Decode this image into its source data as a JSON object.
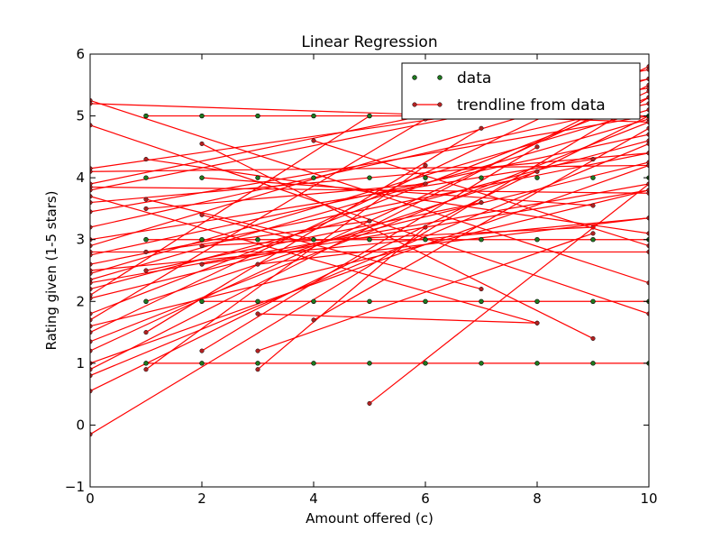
{
  "chart_data": {
    "type": "scatter",
    "title": "Linear Regression",
    "xlabel": "Amount offered (c)",
    "ylabel": "Rating given (1-5 stars)",
    "xlim": [
      0,
      10
    ],
    "ylim": [
      -1,
      6
    ],
    "xticks": [
      0,
      2,
      4,
      6,
      8,
      10
    ],
    "yticks": [
      -1,
      0,
      1,
      2,
      3,
      4,
      5,
      6
    ],
    "grid": false,
    "legend_position": "top-right",
    "series": [
      {
        "name": "data",
        "kind": "points",
        "color": "#1f7a1f",
        "points": [
          [
            1,
            5
          ],
          [
            2,
            5
          ],
          [
            3,
            5
          ],
          [
            4,
            5
          ],
          [
            5,
            5
          ],
          [
            6,
            5
          ],
          [
            7,
            5
          ],
          [
            8,
            5
          ],
          [
            9,
            5
          ],
          [
            10,
            5
          ],
          [
            1,
            4
          ],
          [
            2,
            4
          ],
          [
            3,
            4
          ],
          [
            4,
            4
          ],
          [
            5,
            4
          ],
          [
            6,
            4
          ],
          [
            7,
            4
          ],
          [
            8,
            4
          ],
          [
            9,
            4
          ],
          [
            10,
            4
          ],
          [
            1,
            3
          ],
          [
            2,
            3
          ],
          [
            3,
            3
          ],
          [
            4,
            3
          ],
          [
            5,
            3
          ],
          [
            6,
            3
          ],
          [
            7,
            3
          ],
          [
            8,
            3
          ],
          [
            9,
            3
          ],
          [
            10,
            3
          ],
          [
            1,
            2
          ],
          [
            2,
            2
          ],
          [
            3,
            2
          ],
          [
            4,
            2
          ],
          [
            5,
            2
          ],
          [
            6,
            2
          ],
          [
            7,
            2
          ],
          [
            8,
            2
          ],
          [
            9,
            2
          ],
          [
            10,
            2
          ],
          [
            1,
            1
          ],
          [
            2,
            1
          ],
          [
            3,
            1
          ],
          [
            4,
            1
          ],
          [
            5,
            1
          ],
          [
            6,
            1
          ],
          [
            7,
            1
          ],
          [
            8,
            1
          ],
          [
            9,
            1
          ],
          [
            10,
            1
          ]
        ]
      },
      {
        "name": "trendline from data",
        "kind": "lines",
        "color": "#ff0000",
        "marker_color": "#b22222",
        "lines": [
          [
            1,
            5.0,
            10,
            5.0
          ],
          [
            1,
            1.0,
            10,
            1.0
          ],
          [
            0,
            2.8,
            10,
            2.8
          ],
          [
            1,
            3.0,
            10,
            3.0
          ],
          [
            2,
            2.0,
            10,
            2.0
          ],
          [
            0,
            5.25,
            10,
            2.3
          ],
          [
            0,
            4.85,
            10,
            1.8
          ],
          [
            0,
            5.2,
            10,
            4.9
          ],
          [
            0,
            4.1,
            10,
            4.2
          ],
          [
            0,
            3.85,
            10,
            3.75
          ],
          [
            0,
            2.9,
            10,
            5.6
          ],
          [
            0,
            2.45,
            10,
            5.1
          ],
          [
            0,
            2.35,
            10,
            4.95
          ],
          [
            0,
            2.2,
            10,
            4.6
          ],
          [
            0,
            1.8,
            10,
            5.3
          ],
          [
            0,
            1.5,
            10,
            5.8
          ],
          [
            0,
            1.2,
            10,
            5.4
          ],
          [
            0,
            0.9,
            10,
            5.5
          ],
          [
            0,
            0.55,
            10,
            5.0
          ],
          [
            0,
            -0.15,
            10,
            5.3
          ],
          [
            0,
            2.6,
            10,
            4.4
          ],
          [
            0,
            3.45,
            10,
            5.0
          ],
          [
            0,
            3.8,
            10,
            5.6
          ],
          [
            0,
            2.05,
            10,
            4.25
          ],
          [
            0,
            1.0,
            10,
            4.2
          ],
          [
            0,
            3.2,
            10,
            5.2
          ],
          [
            0,
            2.3,
            10,
            3.9
          ],
          [
            0,
            3.6,
            10,
            4.4
          ],
          [
            0,
            1.6,
            10,
            3.8
          ],
          [
            0,
            2.75,
            10,
            4.7
          ],
          [
            0,
            3.9,
            10,
            5.75
          ],
          [
            0,
            1.35,
            10,
            4.9
          ],
          [
            0,
            4.15,
            10,
            5.45
          ],
          [
            0,
            2.5,
            10,
            3.35
          ],
          [
            0,
            0.8,
            10,
            4.55
          ],
          [
            1,
            0.9,
            6,
            4.2
          ],
          [
            1,
            1.5,
            7,
            4.8
          ],
          [
            2,
            1.2,
            8,
            4.5
          ],
          [
            3,
            0.9,
            6,
            3.2
          ],
          [
            3,
            1.2,
            9,
            3.1
          ],
          [
            4,
            1.7,
            10,
            4.8
          ],
          [
            1,
            2.5,
            7,
            3.6
          ],
          [
            1,
            2.0,
            8,
            4.1
          ],
          [
            2,
            2.9,
            9,
            3.2
          ],
          [
            5,
            0.35,
            10,
            3.9
          ],
          [
            1,
            4.3,
            10,
            3.1
          ],
          [
            0,
            3.7,
            8,
            1.65
          ],
          [
            2,
            4.55,
            9,
            1.4
          ],
          [
            1,
            2.8,
            5,
            3.3
          ],
          [
            2,
            3.4,
            7,
            2.2
          ],
          [
            3,
            1.8,
            8,
            1.65
          ],
          [
            1,
            3.5,
            6,
            3.9
          ],
          [
            2,
            2.6,
            10,
            3.8
          ],
          [
            0,
            2.1,
            5,
            5.0
          ],
          [
            0,
            1.7,
            6,
            4.95
          ],
          [
            0,
            3.0,
            9,
            4.3
          ],
          [
            1,
            3.65,
            4,
            3.0
          ],
          [
            3,
            2.6,
            10,
            3.35
          ],
          [
            4,
            4.6,
            10,
            2.9
          ],
          [
            2,
            4.0,
            9,
            3.55
          ]
        ]
      }
    ]
  }
}
